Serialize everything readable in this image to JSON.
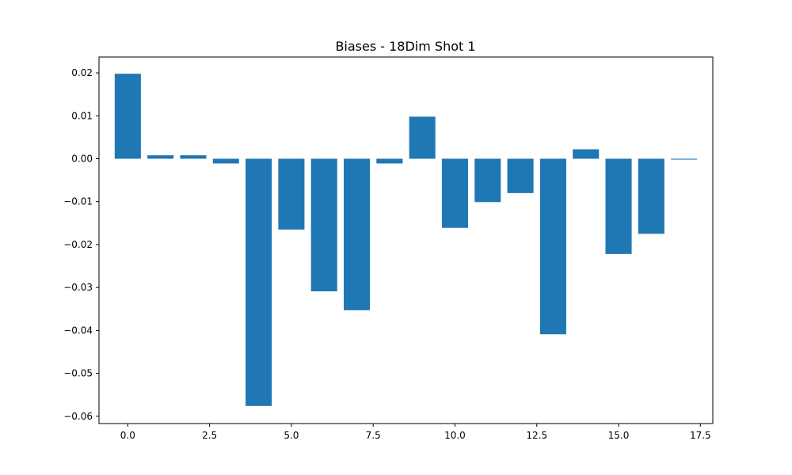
{
  "chart_data": {
    "type": "bar",
    "title": "Biases - 18Dim Shot 1",
    "xlabel": "",
    "ylabel": "",
    "x": [
      0,
      1,
      2,
      3,
      4,
      5,
      6,
      7,
      8,
      9,
      10,
      11,
      12,
      13,
      14,
      15,
      16,
      17
    ],
    "values": [
      0.0198,
      0.0008,
      0.0008,
      -0.0011,
      -0.0576,
      -0.0165,
      -0.0309,
      -0.0353,
      -0.0011,
      0.0098,
      -0.0161,
      -0.0101,
      -0.008,
      -0.0409,
      0.0022,
      -0.0222,
      -0.0175,
      -0.0002
    ],
    "xlim": [
      -0.88,
      17.88
    ],
    "ylim": [
      -0.0617,
      0.0237
    ],
    "xticks": [
      0.0,
      2.5,
      5.0,
      7.5,
      10.0,
      12.5,
      15.0,
      17.5
    ],
    "xtick_labels": [
      "0.0",
      "2.5",
      "5.0",
      "7.5",
      "10.0",
      "12.5",
      "15.0",
      "17.5"
    ],
    "yticks": [
      0.02,
      0.01,
      0.0,
      -0.01,
      -0.02,
      -0.03,
      -0.04,
      -0.05,
      -0.06
    ],
    "ytick_labels": [
      "0.02",
      "0.01",
      "0.00",
      "−0.01",
      "−0.02",
      "−0.03",
      "−0.04",
      "−0.05",
      "−0.06"
    ],
    "bar_color": "#1f77b4",
    "grid": false,
    "legend": false
  }
}
